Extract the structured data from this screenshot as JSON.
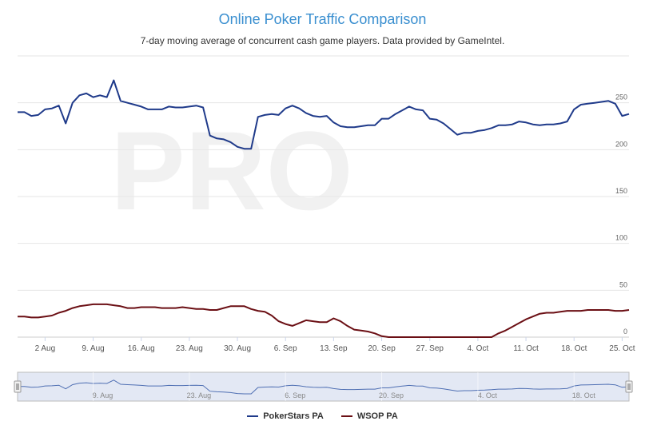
{
  "chart_data": {
    "type": "line",
    "title": "Online Poker Traffic Comparison",
    "subtitle": "7-day moving average of concurrent cash game players. Data provided by GameIntel.",
    "watermark": "PRO",
    "xlabel": "",
    "ylabel": "",
    "ylim": [
      0,
      300
    ],
    "yticks": [
      0,
      50,
      100,
      150,
      200,
      250
    ],
    "xlim": [
      "2015-07-29",
      "2015-10-26"
    ],
    "xtick_labels": [
      "2 Aug",
      "9. Aug",
      "16. Aug",
      "23. Aug",
      "30. Aug",
      "6. Sep",
      "13. Sep",
      "20. Sep",
      "27. Sep",
      "4. Oct",
      "11. Oct",
      "18. Oct",
      "25. Oct"
    ],
    "xtick_dates": [
      "2015-08-02",
      "2015-08-09",
      "2015-08-16",
      "2015-08-23",
      "2015-08-30",
      "2015-09-06",
      "2015-09-13",
      "2015-09-20",
      "2015-09-27",
      "2015-10-04",
      "2015-10-11",
      "2015-10-18",
      "2015-10-25"
    ],
    "navigator_labels": [
      "9. Aug",
      "23. Aug",
      "6. Sep",
      "20. Sep",
      "4. Oct",
      "18. Oct"
    ],
    "navigator_dates": [
      "2015-08-09",
      "2015-08-23",
      "2015-09-06",
      "2015-09-20",
      "2015-10-04",
      "2015-10-18"
    ],
    "legend_position": "bottom-center",
    "series": [
      {
        "name": "PokerStars PA",
        "color": "#1f3a8a",
        "points": [
          [
            "2015-07-29",
            240
          ],
          [
            "2015-07-30",
            240
          ],
          [
            "2015-07-31",
            236
          ],
          [
            "2015-08-01",
            237
          ],
          [
            "2015-08-02",
            243
          ],
          [
            "2015-08-03",
            244
          ],
          [
            "2015-08-04",
            247
          ],
          [
            "2015-08-05",
            228
          ],
          [
            "2015-08-06",
            250
          ],
          [
            "2015-08-07",
            258
          ],
          [
            "2015-08-08",
            260
          ],
          [
            "2015-08-09",
            256
          ],
          [
            "2015-08-10",
            258
          ],
          [
            "2015-08-11",
            256
          ],
          [
            "2015-08-12",
            274
          ],
          [
            "2015-08-13",
            252
          ],
          [
            "2015-08-14",
            250
          ],
          [
            "2015-08-15",
            248
          ],
          [
            "2015-08-16",
            246
          ],
          [
            "2015-08-17",
            243
          ],
          [
            "2015-08-18",
            243
          ],
          [
            "2015-08-19",
            243
          ],
          [
            "2015-08-20",
            246
          ],
          [
            "2015-08-21",
            245
          ],
          [
            "2015-08-22",
            245
          ],
          [
            "2015-08-23",
            246
          ],
          [
            "2015-08-24",
            247
          ],
          [
            "2015-08-25",
            245
          ],
          [
            "2015-08-26",
            215
          ],
          [
            "2015-08-27",
            212
          ],
          [
            "2015-08-28",
            211
          ],
          [
            "2015-08-29",
            208
          ],
          [
            "2015-08-30",
            203
          ],
          [
            "2015-08-31",
            201
          ],
          [
            "2015-09-01",
            201
          ],
          [
            "2015-09-02",
            235
          ],
          [
            "2015-09-03",
            237
          ],
          [
            "2015-09-04",
            238
          ],
          [
            "2015-09-05",
            237
          ],
          [
            "2015-09-06",
            244
          ],
          [
            "2015-09-07",
            247
          ],
          [
            "2015-09-08",
            244
          ],
          [
            "2015-09-09",
            239
          ],
          [
            "2015-09-10",
            236
          ],
          [
            "2015-09-11",
            235
          ],
          [
            "2015-09-12",
            236
          ],
          [
            "2015-09-13",
            229
          ],
          [
            "2015-09-14",
            225
          ],
          [
            "2015-09-15",
            224
          ],
          [
            "2015-09-16",
            224
          ],
          [
            "2015-09-17",
            225
          ],
          [
            "2015-09-18",
            226
          ],
          [
            "2015-09-19",
            226
          ],
          [
            "2015-09-20",
            233
          ],
          [
            "2015-09-21",
            233
          ],
          [
            "2015-09-22",
            238
          ],
          [
            "2015-09-23",
            242
          ],
          [
            "2015-09-24",
            246
          ],
          [
            "2015-09-25",
            243
          ],
          [
            "2015-09-26",
            242
          ],
          [
            "2015-09-27",
            233
          ],
          [
            "2015-09-28",
            232
          ],
          [
            "2015-09-29",
            228
          ],
          [
            "2015-09-30",
            222
          ],
          [
            "2015-10-01",
            216
          ],
          [
            "2015-10-02",
            218
          ],
          [
            "2015-10-03",
            218
          ],
          [
            "2015-10-04",
            220
          ],
          [
            "2015-10-05",
            221
          ],
          [
            "2015-10-06",
            223
          ],
          [
            "2015-10-07",
            226
          ],
          [
            "2015-10-08",
            226
          ],
          [
            "2015-10-09",
            227
          ],
          [
            "2015-10-10",
            230
          ],
          [
            "2015-10-11",
            229
          ],
          [
            "2015-10-12",
            227
          ],
          [
            "2015-10-13",
            226
          ],
          [
            "2015-10-14",
            227
          ],
          [
            "2015-10-15",
            227
          ],
          [
            "2015-10-16",
            228
          ],
          [
            "2015-10-17",
            230
          ],
          [
            "2015-10-18",
            243
          ],
          [
            "2015-10-19",
            248
          ],
          [
            "2015-10-20",
            249
          ],
          [
            "2015-10-21",
            250
          ],
          [
            "2015-10-22",
            251
          ],
          [
            "2015-10-23",
            252
          ],
          [
            "2015-10-24",
            249
          ],
          [
            "2015-10-25",
            236
          ],
          [
            "2015-10-26",
            238
          ]
        ]
      },
      {
        "name": "WSOP PA",
        "color": "#6b0f14",
        "points": [
          [
            "2015-07-29",
            22
          ],
          [
            "2015-07-30",
            22
          ],
          [
            "2015-07-31",
            21
          ],
          [
            "2015-08-01",
            21
          ],
          [
            "2015-08-02",
            22
          ],
          [
            "2015-08-03",
            23
          ],
          [
            "2015-08-04",
            26
          ],
          [
            "2015-08-05",
            28
          ],
          [
            "2015-08-06",
            31
          ],
          [
            "2015-08-07",
            33
          ],
          [
            "2015-08-08",
            34
          ],
          [
            "2015-08-09",
            35
          ],
          [
            "2015-08-10",
            35
          ],
          [
            "2015-08-11",
            35
          ],
          [
            "2015-08-12",
            34
          ],
          [
            "2015-08-13",
            33
          ],
          [
            "2015-08-14",
            31
          ],
          [
            "2015-08-15",
            31
          ],
          [
            "2015-08-16",
            32
          ],
          [
            "2015-08-17",
            32
          ],
          [
            "2015-08-18",
            32
          ],
          [
            "2015-08-19",
            31
          ],
          [
            "2015-08-20",
            31
          ],
          [
            "2015-08-21",
            31
          ],
          [
            "2015-08-22",
            32
          ],
          [
            "2015-08-23",
            31
          ],
          [
            "2015-08-24",
            30
          ],
          [
            "2015-08-25",
            30
          ],
          [
            "2015-08-26",
            29
          ],
          [
            "2015-08-27",
            29
          ],
          [
            "2015-08-28",
            31
          ],
          [
            "2015-08-29",
            33
          ],
          [
            "2015-08-30",
            33
          ],
          [
            "2015-08-31",
            33
          ],
          [
            "2015-09-01",
            30
          ],
          [
            "2015-09-02",
            28
          ],
          [
            "2015-09-03",
            27
          ],
          [
            "2015-09-04",
            23
          ],
          [
            "2015-09-05",
            17
          ],
          [
            "2015-09-06",
            14
          ],
          [
            "2015-09-07",
            12
          ],
          [
            "2015-09-08",
            15
          ],
          [
            "2015-09-09",
            18
          ],
          [
            "2015-09-10",
            17
          ],
          [
            "2015-09-11",
            16
          ],
          [
            "2015-09-12",
            16
          ],
          [
            "2015-09-13",
            20
          ],
          [
            "2015-09-14",
            17
          ],
          [
            "2015-09-15",
            12
          ],
          [
            "2015-09-16",
            8
          ],
          [
            "2015-09-17",
            7
          ],
          [
            "2015-09-18",
            6
          ],
          [
            "2015-09-19",
            4
          ],
          [
            "2015-09-20",
            1
          ],
          [
            "2015-09-21",
            0
          ],
          [
            "2015-09-22",
            0
          ],
          [
            "2015-09-23",
            0
          ],
          [
            "2015-09-24",
            0
          ],
          [
            "2015-09-25",
            0
          ],
          [
            "2015-09-26",
            0
          ],
          [
            "2015-09-27",
            0
          ],
          [
            "2015-09-28",
            0
          ],
          [
            "2015-09-29",
            0
          ],
          [
            "2015-09-30",
            0
          ],
          [
            "2015-10-01",
            0
          ],
          [
            "2015-10-02",
            0
          ],
          [
            "2015-10-03",
            0
          ],
          [
            "2015-10-04",
            0
          ],
          [
            "2015-10-05",
            0
          ],
          [
            "2015-10-06",
            0
          ],
          [
            "2015-10-07",
            4
          ],
          [
            "2015-10-08",
            7
          ],
          [
            "2015-10-09",
            11
          ],
          [
            "2015-10-10",
            15
          ],
          [
            "2015-10-11",
            19
          ],
          [
            "2015-10-12",
            22
          ],
          [
            "2015-10-13",
            25
          ],
          [
            "2015-10-14",
            26
          ],
          [
            "2015-10-15",
            26
          ],
          [
            "2015-10-16",
            27
          ],
          [
            "2015-10-17",
            28
          ],
          [
            "2015-10-18",
            28
          ],
          [
            "2015-10-19",
            28
          ],
          [
            "2015-10-20",
            29
          ],
          [
            "2015-10-21",
            29
          ],
          [
            "2015-10-22",
            29
          ],
          [
            "2015-10-23",
            29
          ],
          [
            "2015-10-24",
            28
          ],
          [
            "2015-10-25",
            28
          ],
          [
            "2015-10-26",
            29
          ]
        ]
      }
    ]
  }
}
